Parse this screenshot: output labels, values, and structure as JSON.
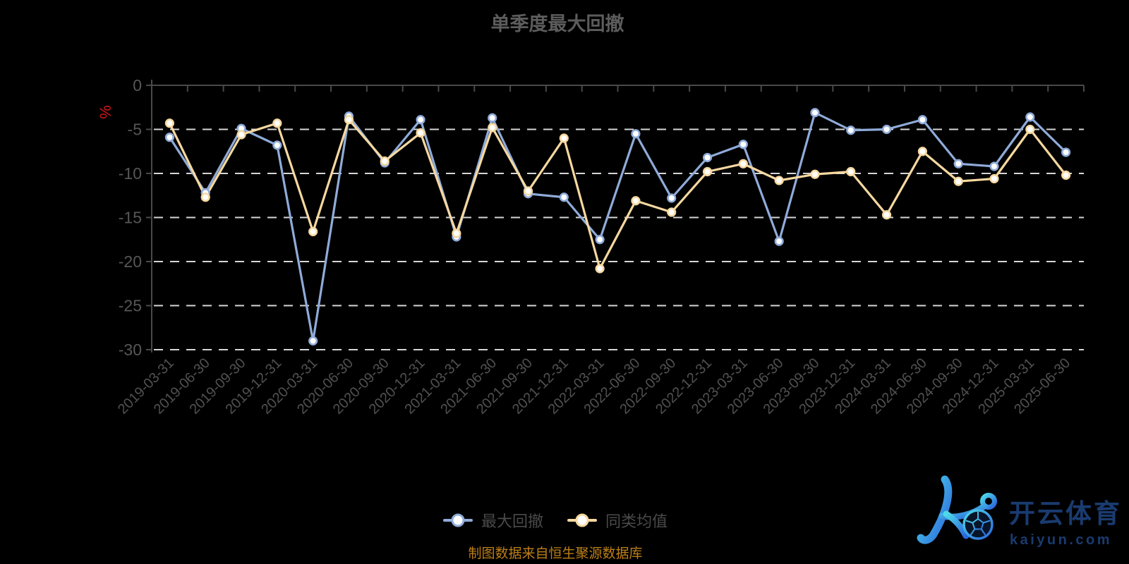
{
  "title": "单季度最大回撤",
  "y_axis": {
    "unit": "%",
    "labels": [
      "0",
      "-5",
      "-10",
      "-15",
      "-20",
      "-25",
      "-30"
    ],
    "max": 0,
    "min": -30,
    "interval": 5
  },
  "legend": {
    "items": [
      {
        "label": "最大回撤",
        "color": "#8fabd9"
      },
      {
        "label": "同类均值",
        "color": "#f6d8a0"
      }
    ]
  },
  "source_note": "制图数据来自恒生聚源数据库",
  "watermark": {
    "brand_cn": "开云体育",
    "brand_domain": "kaiyun.com",
    "icon": "soccer-ball-k-logo"
  },
  "colors": {
    "background": "#000000",
    "series_max_drawdown": "#8fabd9",
    "series_category_avg": "#f6d8a0",
    "gridline": "#d6d6d6",
    "axis": "#494949",
    "axis_label": "#535353",
    "unit_label": "#d31717",
    "source_note": "#bd7f16",
    "logo_navy": "#1a3b70"
  },
  "chart_data": {
    "type": "line",
    "title": "单季度最大回撤",
    "xlabel": "",
    "ylabel": "%",
    "ylim": [
      -30,
      0
    ],
    "y_tick_interval": 5,
    "grid": "horizontal dashed",
    "legend_position": "bottom-center",
    "categories": [
      "2019-03-31",
      "2019-06-30",
      "2019-09-30",
      "2019-12-31",
      "2020-03-31",
      "2020-06-30",
      "2020-09-30",
      "2020-12-31",
      "2021-03-31",
      "2021-06-30",
      "2021-09-30",
      "2021-12-31",
      "2022-03-31",
      "2022-06-30",
      "2022-09-30",
      "2022-12-31",
      "2023-03-31",
      "2023-06-30",
      "2023-09-30",
      "2023-12-31",
      "2024-03-31",
      "2024-06-30",
      "2024-09-30",
      "2024-12-31",
      "2025-03-31",
      "2025-06-30"
    ],
    "series": [
      {
        "name": "最大回撤",
        "color": "#8fabd9",
        "values": [
          -5.9,
          -12.2,
          -4.9,
          -6.8,
          -29.0,
          -3.5,
          -8.8,
          -3.9,
          -17.2,
          -3.7,
          -12.3,
          -12.7,
          -17.5,
          -5.5,
          -12.8,
          -8.2,
          -6.7,
          -17.7,
          -3.1,
          -5.1,
          -5.0,
          -3.9,
          -8.9,
          -9.2,
          -3.6,
          -7.6
        ]
      },
      {
        "name": "同类均值",
        "color": "#f6d8a0",
        "values": [
          -4.3,
          -12.7,
          -5.6,
          -4.3,
          -16.6,
          -3.9,
          -8.6,
          -5.4,
          -16.8,
          -4.8,
          -12.0,
          -6.0,
          -20.8,
          -13.1,
          -14.4,
          -9.8,
          -8.9,
          -10.8,
          -10.1,
          -9.8,
          -14.7,
          -7.5,
          -10.9,
          -10.6,
          -5.0,
          -10.2
        ]
      }
    ]
  }
}
